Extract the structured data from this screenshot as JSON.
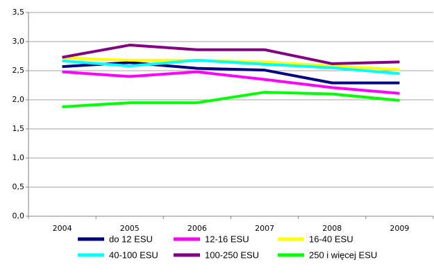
{
  "chart_data": {
    "type": "line",
    "categories": [
      "2004",
      "2005",
      "2006",
      "2007",
      "2008",
      "2009"
    ],
    "series": [
      {
        "name": "do 12 ESU",
        "color": "#000080",
        "values": [
          2.57,
          2.64,
          2.54,
          2.51,
          2.29,
          2.29
        ]
      },
      {
        "name": "12-16 ESU",
        "color": "#ff00ff",
        "values": [
          2.48,
          2.4,
          2.48,
          2.35,
          2.21,
          2.11
        ]
      },
      {
        "name": "16-40 ESU",
        "color": "#ffff00",
        "values": [
          2.72,
          2.68,
          2.68,
          2.65,
          2.58,
          2.52
        ]
      },
      {
        "name": "40-100 ESU",
        "color": "#00ffff",
        "values": [
          2.67,
          2.58,
          2.68,
          2.61,
          2.55,
          2.45
        ]
      },
      {
        "name": "100-250 ESU",
        "color": "#800080",
        "values": [
          2.73,
          2.94,
          2.86,
          2.86,
          2.62,
          2.65
        ]
      },
      {
        "name": "250 i więcej ESU",
        "color": "#00ff00",
        "values": [
          1.88,
          1.95,
          1.95,
          2.13,
          2.1,
          1.99
        ]
      }
    ],
    "ylim": [
      0,
      3.5
    ],
    "yticks": [
      {
        "value": 0,
        "label": "0,0"
      },
      {
        "value": 0.5,
        "label": "0,5"
      },
      {
        "value": 1,
        "label": "1,0"
      },
      {
        "value": 1.5,
        "label": "1,5"
      },
      {
        "value": 2,
        "label": "2,0"
      },
      {
        "value": 2.5,
        "label": "2,5"
      },
      {
        "value": 3,
        "label": "3,0"
      },
      {
        "value": 3.5,
        "label": "3,5"
      }
    ],
    "grid": true
  }
}
